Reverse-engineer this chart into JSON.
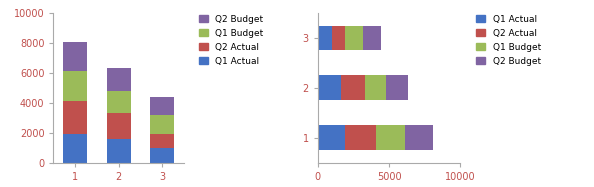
{
  "categories": [
    1,
    2,
    3
  ],
  "series": {
    "Q1 Actual": [
      1900,
      1600,
      1000
    ],
    "Q2 Actual": [
      2200,
      1700,
      900
    ],
    "Q1 Budget": [
      2000,
      1500,
      1300
    ],
    "Q2 Budget": [
      2000,
      1500,
      1200
    ]
  },
  "colors": {
    "Q1 Actual": "#4472C4",
    "Q2 Actual": "#C0504D",
    "Q1 Budget": "#9BBB59",
    "Q2 Budget": "#8064A2"
  },
  "left_ylim": [
    0,
    10000
  ],
  "left_yticks": [
    0,
    2000,
    4000,
    6000,
    8000,
    10000
  ],
  "right_xlim": [
    0,
    10000
  ],
  "right_xticks": [
    0,
    5000,
    10000
  ],
  "left_legend_order": [
    "Q2 Budget",
    "Q1 Budget",
    "Q2 Actual",
    "Q1 Actual"
  ],
  "right_legend_order": [
    "Q1 Actual",
    "Q2 Actual",
    "Q1 Budget",
    "Q2 Budget"
  ],
  "bg_color": "#FFFFFF",
  "tick_label_color": "#C0504D"
}
